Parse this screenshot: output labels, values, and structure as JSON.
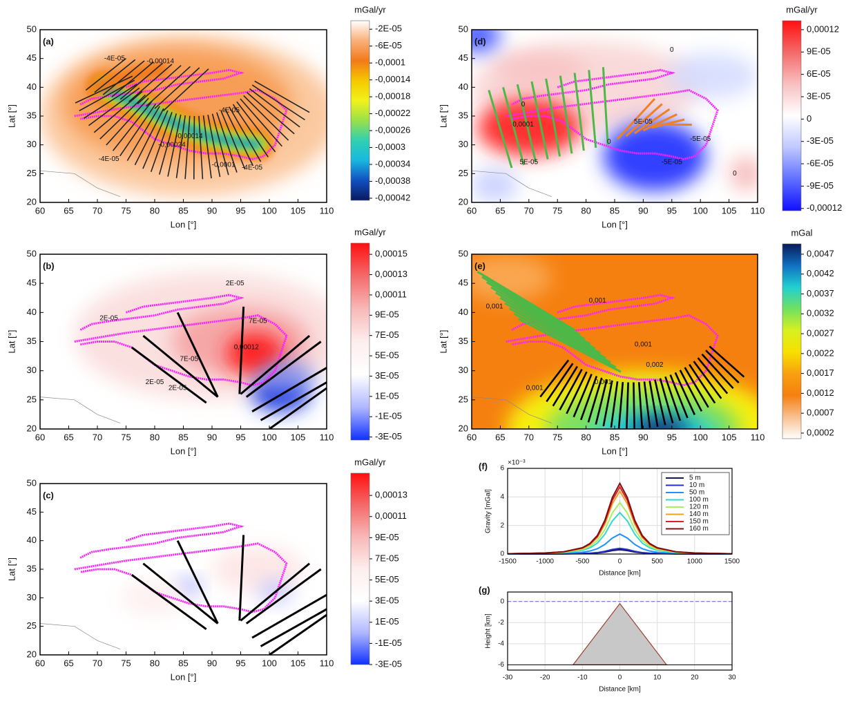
{
  "chart_data": [
    {
      "type": "map",
      "panel_label": "(a)",
      "xlabel": "Lon [°]",
      "ylabel": "Lat [°]",
      "xlim": [
        60,
        110
      ],
      "ylim": [
        20,
        50
      ],
      "xticks": [
        60,
        65,
        70,
        75,
        80,
        85,
        90,
        95,
        100,
        105,
        110
      ],
      "yticks": [
        20,
        25,
        30,
        35,
        40,
        45,
        50
      ],
      "colorbar": {
        "title": "mGal/yr",
        "lim": [
          -0.000425,
          0
        ],
        "colormap": [
          "#ffffff",
          "#f9b07a",
          "#f27a1a",
          "#f5c800",
          "#f2f21a",
          "#9ae04a",
          "#30d0b0",
          "#18b8e0",
          "#1050c0",
          "#0a1a60"
        ],
        "ticks": [
          {
            "value": -2e-05,
            "label": "-2E-05"
          },
          {
            "value": -6e-05,
            "label": "-6E-05"
          },
          {
            "value": -0.0001,
            "label": "-0,0001"
          },
          {
            "value": -0.00014,
            "label": "-0,00014"
          },
          {
            "value": -0.00018,
            "label": "-0,00018"
          },
          {
            "value": -0.00022,
            "label": "-0,00022"
          },
          {
            "value": -0.00026,
            "label": "-0,00026"
          },
          {
            "value": -0.0003,
            "label": "-0,0003"
          },
          {
            "value": -0.00034,
            "label": "-0,00034"
          },
          {
            "value": -0.00038,
            "label": "-0,00038"
          },
          {
            "value": -0.00042,
            "label": "-0,00042"
          }
        ]
      },
      "contour_labels": [
        "-4E-05",
        "-0,00014",
        "-4E-05",
        "-0,00014",
        "-0,00024",
        "-0,0001",
        "-4E-05",
        "-4E-05"
      ]
    },
    {
      "type": "map",
      "panel_label": "(b)",
      "xlabel": "Lon [°]",
      "ylabel": "Lat [°]",
      "xlim": [
        60,
        110
      ],
      "ylim": [
        20,
        50
      ],
      "xticks": [
        60,
        65,
        70,
        75,
        80,
        85,
        90,
        95,
        100,
        105,
        110
      ],
      "yticks": [
        20,
        25,
        30,
        35,
        40,
        45,
        50
      ],
      "colorbar": {
        "title": "mGal/yr",
        "lim": [
          -3.3e-05,
          0.000161
        ],
        "colormap": [
          "#ff1010",
          "#f46a6a",
          "#f8b8b8",
          "#fdeeee",
          "#ffffff",
          "#b0b8ff",
          "#1030ff"
        ],
        "ticks": [
          {
            "value": 0.00015,
            "label": "0,00015"
          },
          {
            "value": 0.00013,
            "label": "0,00013"
          },
          {
            "value": 0.00011,
            "label": "0,00011"
          },
          {
            "value": 9e-05,
            "label": "9E-05"
          },
          {
            "value": 7e-05,
            "label": "7E-05"
          },
          {
            "value": 5e-05,
            "label": "5E-05"
          },
          {
            "value": 3e-05,
            "label": "3E-05"
          },
          {
            "value": 1e-05,
            "label": "1E-05"
          },
          {
            "value": -1e-05,
            "label": "-1E-05"
          },
          {
            "value": -3e-05,
            "label": "-3E-05"
          }
        ]
      },
      "contour_labels": [
        "2E-05",
        "7E-05",
        "0,00012",
        "7E-05",
        "2E-05",
        "2E-05",
        "2E-05"
      ]
    },
    {
      "type": "map",
      "panel_label": "(c)",
      "xlabel": "Lon [°]",
      "ylabel": "Lat [°]",
      "xlim": [
        60,
        110
      ],
      "ylim": [
        20,
        50
      ],
      "xticks": [
        60,
        65,
        70,
        75,
        80,
        85,
        90,
        95,
        100,
        105,
        110
      ],
      "yticks": [
        20,
        25,
        30,
        35,
        40,
        45,
        50
      ],
      "colorbar": {
        "title": "mGal/yr",
        "lim": [
          -3e-05,
          0.000151
        ],
        "colormap": [
          "#ff1010",
          "#f46a6a",
          "#f8b8b8",
          "#fdeeee",
          "#ffffff",
          "#b0b8ff",
          "#1030ff"
        ],
        "ticks": [
          {
            "value": 0.00013,
            "label": "0,00013"
          },
          {
            "value": 0.00011,
            "label": "0,00011"
          },
          {
            "value": 9e-05,
            "label": "9E-05"
          },
          {
            "value": 7e-05,
            "label": "7E-05"
          },
          {
            "value": 5e-05,
            "label": "5E-05"
          },
          {
            "value": 3e-05,
            "label": "3E-05"
          },
          {
            "value": 1e-05,
            "label": "1E-05"
          },
          {
            "value": -1e-05,
            "label": "-1E-05"
          },
          {
            "value": -3e-05,
            "label": "-3E-05"
          }
        ]
      },
      "contour_labels": []
    },
    {
      "type": "map",
      "panel_label": "(d)",
      "xlabel": "Lon [°]",
      "ylabel": "Lat [°]",
      "xlim": [
        60,
        110
      ],
      "ylim": [
        20,
        50
      ],
      "xticks": [
        60,
        65,
        70,
        75,
        80,
        85,
        90,
        95,
        100,
        105,
        110
      ],
      "yticks": [
        20,
        25,
        30,
        35,
        40,
        45,
        50
      ],
      "colorbar": {
        "title": "mGal/yr",
        "lim": [
          -0.000123,
          0.000132
        ],
        "colormap": [
          "#ff1010",
          "#f46a6a",
          "#f8c0c0",
          "#ffffff",
          "#c0c8ff",
          "#6070ff",
          "#1010ff"
        ],
        "ticks": [
          {
            "value": 0.00012,
            "label": "0,00012"
          },
          {
            "value": 9e-05,
            "label": "9E-05"
          },
          {
            "value": 6e-05,
            "label": "6E-05"
          },
          {
            "value": 3e-05,
            "label": "3E-05"
          },
          0,
          {
            "value": -3e-05,
            "label": "-3E-05"
          },
          {
            "value": -6e-05,
            "label": "-6E-05"
          },
          {
            "value": -9e-05,
            "label": "-9E-05"
          },
          {
            "value": -0.00012,
            "label": "-0,00012"
          }
        ]
      },
      "contour_labels": [
        "0",
        "0",
        "5E-05",
        "0,0001",
        "0",
        "5E-05",
        "-5E-05",
        "-5E-05",
        "0"
      ]
    },
    {
      "type": "map",
      "panel_label": "(e)",
      "xlabel": "Lon [°]",
      "ylabel": "Lat [°]",
      "xlim": [
        60,
        110
      ],
      "ylim": [
        20,
        50
      ],
      "xticks": [
        60,
        65,
        70,
        75,
        80,
        85,
        90,
        95,
        100,
        105,
        110
      ],
      "yticks": [
        20,
        25,
        30,
        35,
        40,
        45,
        50
      ],
      "colorbar": {
        "title": "mGal",
        "lim": [
          6e-05,
          0.00496
        ],
        "colormap": [
          "#0a1a5a",
          "#1070c0",
          "#20d0d0",
          "#70e060",
          "#d8f020",
          "#f8e000",
          "#f8a010",
          "#f58010",
          "#f8c090",
          "#ffffff"
        ],
        "ticks": [
          {
            "value": 0.0047,
            "label": "0,0047"
          },
          {
            "value": 0.0042,
            "label": "0,0042"
          },
          {
            "value": 0.0037,
            "label": "0,0037"
          },
          {
            "value": 0.0032,
            "label": "0,0032"
          },
          {
            "value": 0.0027,
            "label": "0,0027"
          },
          {
            "value": 0.0022,
            "label": "0,0022"
          },
          {
            "value": 0.0017,
            "label": "0,0017"
          },
          {
            "value": 0.0012,
            "label": "0,0012"
          },
          {
            "value": 0.0007,
            "label": "0,0007"
          },
          {
            "value": 0.0002,
            "label": "0,0002"
          }
        ]
      },
      "contour_labels": [
        "0,001",
        "0,001",
        "0,001",
        "0,002",
        "0,001",
        "0,001"
      ]
    },
    {
      "type": "line",
      "panel_label": "(f)",
      "xlabel": "Distance [km]",
      "ylabel": "Gravity [mGal]",
      "y_exponent_label": "×10⁻³",
      "grid": true,
      "xlim": [
        -1500,
        1500
      ],
      "ylim": [
        0,
        6
      ],
      "xticks": [
        -1500,
        -1000,
        -500,
        0,
        500,
        1000,
        1500
      ],
      "yticks": [
        0,
        2,
        4,
        6
      ],
      "x": [
        -1500,
        -1000,
        -750,
        -500,
        -400,
        -300,
        -200,
        -100,
        0,
        100,
        200,
        300,
        400,
        500,
        750,
        1000,
        1500
      ],
      "series": [
        {
          "name": "5 m",
          "color": "#141460",
          "values": [
            0,
            0,
            0.01,
            0.03,
            0.04,
            0.08,
            0.14,
            0.24,
            0.3,
            0.24,
            0.14,
            0.08,
            0.04,
            0.03,
            0.01,
            0,
            0
          ]
        },
        {
          "name": "10 m",
          "color": "#2030c8",
          "values": [
            0,
            0.01,
            0.01,
            0.04,
            0.06,
            0.1,
            0.19,
            0.32,
            0.4,
            0.32,
            0.19,
            0.1,
            0.06,
            0.04,
            0.01,
            0.01,
            0
          ]
        },
        {
          "name": "50 m",
          "color": "#1e90ff",
          "values": [
            0.01,
            0.02,
            0.04,
            0.12,
            0.21,
            0.37,
            0.67,
            1.12,
            1.4,
            1.12,
            0.67,
            0.37,
            0.21,
            0.12,
            0.04,
            0.02,
            0.01
          ]
        },
        {
          "name": "100 m",
          "color": "#30d8d0",
          "values": [
            0.01,
            0.04,
            0.09,
            0.26,
            0.43,
            0.76,
            1.38,
            2.32,
            2.9,
            2.32,
            1.38,
            0.76,
            0.43,
            0.26,
            0.09,
            0.04,
            0.01
          ]
        },
        {
          "name": "120 m",
          "color": "#a8f060",
          "values": [
            0.02,
            0.05,
            0.12,
            0.32,
            0.54,
            0.94,
            1.71,
            2.88,
            3.6,
            2.88,
            1.71,
            0.94,
            0.54,
            0.32,
            0.12,
            0.05,
            0.02
          ]
        },
        {
          "name": "140 m",
          "color": "#f0a020",
          "values": [
            0.02,
            0.06,
            0.14,
            0.39,
            0.66,
            1.15,
            2.09,
            3.52,
            4.4,
            3.52,
            2.09,
            1.15,
            0.66,
            0.39,
            0.14,
            0.06,
            0.02
          ]
        },
        {
          "name": "150 m",
          "color": "#e02020",
          "values": [
            0.02,
            0.07,
            0.15,
            0.42,
            0.7,
            1.23,
            2.24,
            3.76,
            4.7,
            3.76,
            2.24,
            1.23,
            0.7,
            0.42,
            0.15,
            0.07,
            0.02
          ]
        },
        {
          "name": "160 m",
          "color": "#801010",
          "values": [
            0.02,
            0.07,
            0.16,
            0.44,
            0.74,
            1.3,
            2.36,
            3.96,
            4.95,
            3.96,
            2.36,
            1.3,
            0.74,
            0.44,
            0.16,
            0.07,
            0.02
          ]
        }
      ]
    },
    {
      "type": "area",
      "panel_label": "(g)",
      "xlabel": "Distance [km]",
      "ylabel": "Height [km]",
      "grid": true,
      "xlim": [
        -30,
        30
      ],
      "ylim": [
        -6.5,
        0.9
      ],
      "xticks": [
        -30,
        -20,
        -10,
        0,
        10,
        20,
        30
      ],
      "yticks": [
        0,
        -2,
        -4,
        -6
      ],
      "x": [
        -12.5,
        0,
        12.5
      ],
      "values": [
        -6,
        -0.2,
        -6
      ],
      "color": "#c8c8c8",
      "reference_line": 0
    }
  ]
}
